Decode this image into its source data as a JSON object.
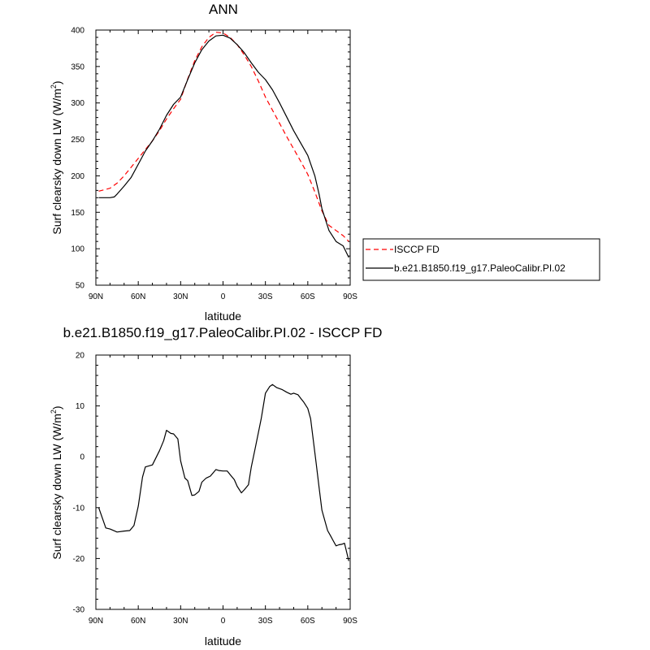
{
  "chart_data": [
    {
      "type": "line",
      "title": "ANN",
      "xlabel": "latitude",
      "ylabel_main": "Surf clearsky down LW (W/m",
      "ylabel_sup": "2",
      "ylabel_end": ")",
      "x_ticks": [
        90,
        60,
        30,
        0,
        -30,
        -60,
        -90
      ],
      "x_tick_labels": [
        "90N",
        "60N",
        "30N",
        "0",
        "30S",
        "60S",
        "90S"
      ],
      "xlim": [
        90,
        -90
      ],
      "ylim": [
        50,
        400
      ],
      "y_ticks": [
        50,
        100,
        150,
        200,
        250,
        300,
        350,
        400
      ],
      "y_tick_labels": [
        "50",
        "100",
        "150",
        "200",
        "250",
        "300",
        "350",
        "400"
      ],
      "legend_position": "right",
      "series": [
        {
          "name": "ISCCP FD",
          "color": "#ff0000",
          "style": "dashed",
          "x": [
            88,
            80,
            75,
            70,
            65,
            60,
            55,
            50,
            45,
            40,
            35,
            30,
            25,
            20,
            15,
            10,
            5,
            0,
            -5,
            -10,
            -15,
            -20,
            -25,
            -30,
            -35,
            -40,
            -45,
            -50,
            -55,
            -60,
            -65,
            -70,
            -75,
            -80,
            -85,
            -89
          ],
          "y": [
            179,
            183,
            190,
            200,
            212,
            224,
            236,
            248,
            262,
            278,
            292,
            305,
            333,
            358,
            377,
            390,
            397,
            396,
            390,
            380,
            366,
            350,
            330,
            308,
            290,
            272,
            254,
            237,
            220,
            202,
            178,
            152,
            132,
            125,
            118,
            110
          ]
        },
        {
          "name": "b.e21.B1850.f19_g17.PaleoCalibr.PI.02",
          "color": "#000000",
          "style": "solid",
          "x": [
            88,
            80,
            77,
            75,
            70,
            65,
            60,
            55,
            50,
            45,
            40,
            35,
            30,
            25,
            20,
            15,
            10,
            5,
            0,
            -5,
            -10,
            -15,
            -20,
            -25,
            -30,
            -35,
            -40,
            -45,
            -50,
            -55,
            -60,
            -65,
            -68,
            -70,
            -75,
            -80,
            -85,
            -89
          ],
          "y": [
            170,
            170,
            171,
            175,
            186,
            198,
            216,
            234,
            248,
            264,
            283,
            298,
            308,
            332,
            355,
            373,
            385,
            392,
            393,
            389,
            380,
            369,
            355,
            342,
            332,
            318,
            300,
            281,
            262,
            245,
            228,
            200,
            175,
            155,
            125,
            110,
            104,
            88
          ]
        }
      ]
    },
    {
      "type": "line",
      "title": "b.e21.B1850.f19_g17.PaleoCalibr.PI.02 - ISCCP FD",
      "xlabel": "latitude",
      "ylabel_main": "Surf clearsky down LW (W/m",
      "ylabel_sup": "2",
      "ylabel_end": ")",
      "x_ticks": [
        90,
        60,
        30,
        0,
        -30,
        -60,
        -90
      ],
      "x_tick_labels": [
        "90N",
        "60N",
        "30N",
        "0",
        "30S",
        "60S",
        "90S"
      ],
      "xlim": [
        90,
        -90
      ],
      "ylim": [
        -30,
        20
      ],
      "y_ticks": [
        -30,
        -20,
        -10,
        0,
        10,
        20
      ],
      "y_tick_labels": [
        "-30",
        "-20",
        "-10",
        "0",
        "10",
        "20"
      ],
      "series": [
        {
          "color": "#000000",
          "style": "solid",
          "x": [
            88,
            83,
            80,
            75,
            70,
            66,
            63,
            60,
            57,
            55,
            50,
            45,
            42,
            40,
            37,
            35,
            32,
            30,
            27,
            25,
            22,
            20,
            17,
            15,
            12,
            9,
            5,
            3,
            0,
            -3,
            -5,
            -8,
            -10,
            -13,
            -15,
            -18,
            -20,
            -23,
            -27,
            -30,
            -33,
            -35,
            -38,
            -42,
            -45,
            -48,
            -50,
            -53,
            -55,
            -57,
            -60,
            -62,
            -64,
            -66,
            -68,
            -70,
            -74,
            -76,
            -78,
            -80,
            -82,
            -84,
            -86,
            -89
          ],
          "y": [
            -10,
            -14,
            -14.2,
            -14.8,
            -14.6,
            -14.5,
            -13.5,
            -9.7,
            -4,
            -2,
            -1.6,
            1.2,
            3.2,
            5.2,
            4.6,
            4.5,
            3.5,
            -0.8,
            -4.2,
            -4.7,
            -7.6,
            -7.5,
            -6.8,
            -5,
            -4.2,
            -3.8,
            -2.5,
            -2.7,
            -2.8,
            -2.8,
            -3.5,
            -4.5,
            -5.8,
            -7.1,
            -6.5,
            -5.5,
            -2,
            2,
            7.5,
            12.5,
            13.8,
            14.2,
            13.6,
            13.2,
            12.7,
            12.3,
            12.5,
            12.2,
            11.5,
            10.8,
            9.5,
            7.5,
            3,
            -1.5,
            -6,
            -10.5,
            -14.5,
            -15.5,
            -16.5,
            -17.5,
            -17.3,
            -17.2,
            -17,
            -20.5
          ]
        }
      ]
    }
  ]
}
